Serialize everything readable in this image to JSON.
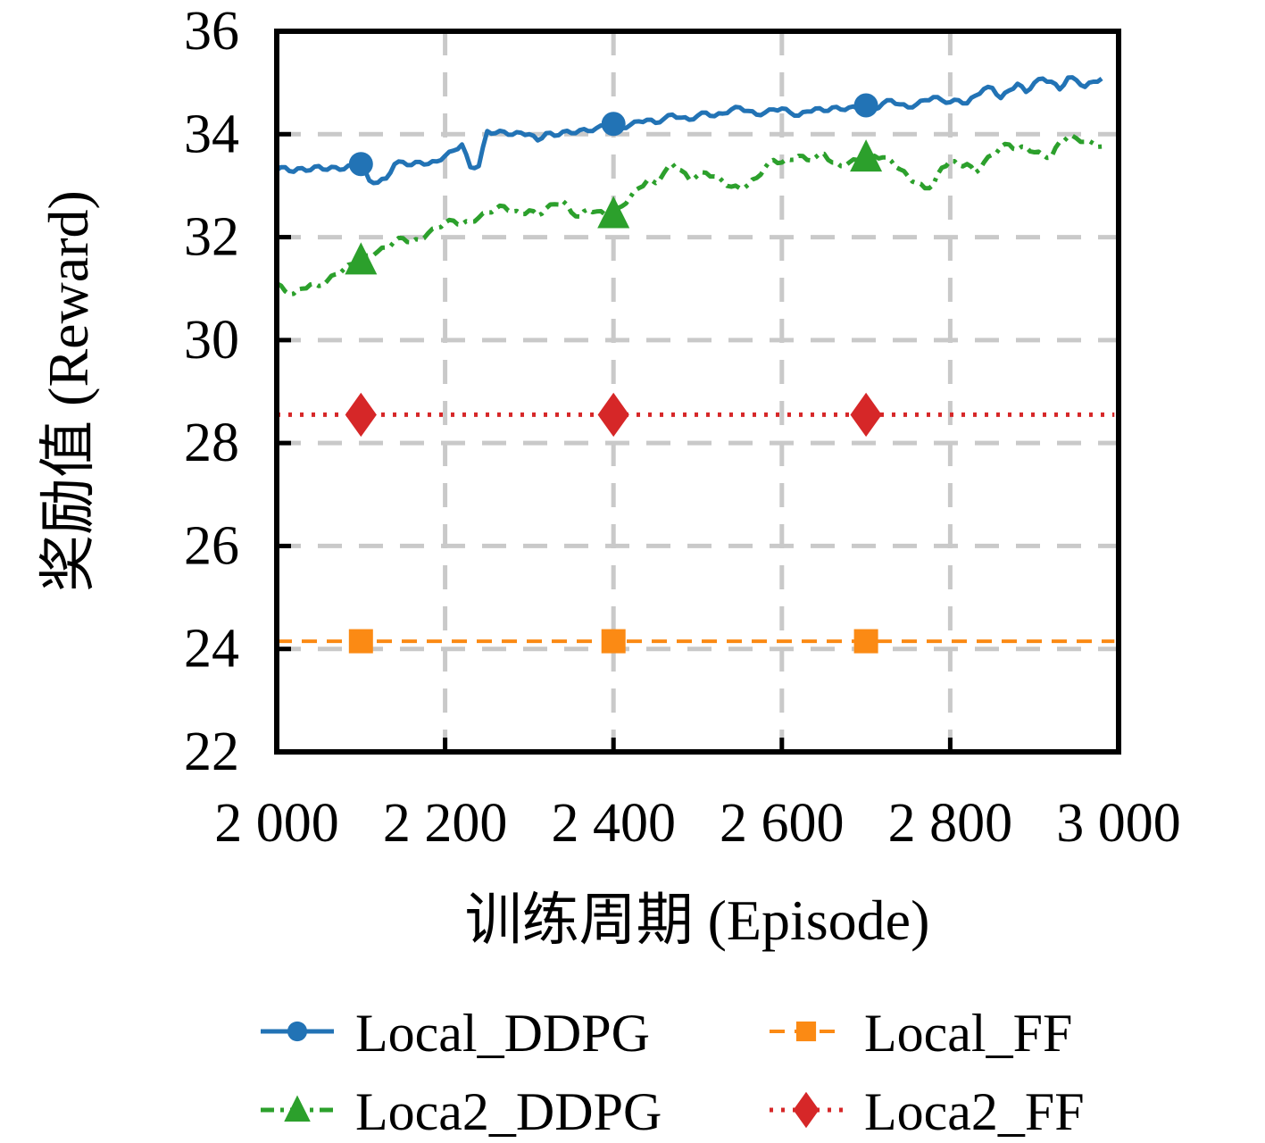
{
  "chart_data": {
    "type": "line",
    "title": "",
    "xlabel": "训练周期 (Episode)",
    "ylabel": "奖励值 (Reward)",
    "xlim": [
      2000,
      3000
    ],
    "ylim": [
      22,
      36
    ],
    "xticks": [
      2000,
      2200,
      2400,
      2600,
      2800,
      3000
    ],
    "xtick_labels": [
      "2 000",
      "2 200",
      "2 400",
      "2 600",
      "2 800",
      "3 000"
    ],
    "yticks": [
      22,
      24,
      26,
      28,
      30,
      32,
      34,
      36
    ],
    "ytick_labels": [
      "22",
      "24",
      "26",
      "28",
      "30",
      "32",
      "34",
      "36"
    ],
    "grid": true,
    "grid_color": "#c9c9c9",
    "axis_color": "#000000",
    "background": "#ffffff",
    "legend_position": "below-two-columns",
    "legend_order": [
      0,
      2,
      1,
      3
    ],
    "series": [
      {
        "name": "Local_DDPG",
        "color": "#2273b5",
        "line_style": "solid",
        "line_width": 5,
        "marker": "circle",
        "marker_size": 27,
        "jitter": 0.03,
        "marker_x": [
          2100,
          2400,
          2700
        ],
        "marker_y": [
          33.42,
          34.2,
          34.56
        ],
        "x_start": 2000,
        "x_step": 10,
        "y": [
          33.3,
          33.36,
          33.27,
          33.34,
          33.3,
          33.38,
          33.31,
          33.36,
          33.32,
          33.4,
          33.42,
          33.1,
          33.06,
          33.14,
          33.42,
          33.46,
          33.4,
          33.46,
          33.42,
          33.47,
          33.58,
          33.68,
          33.8,
          33.36,
          33.38,
          34.06,
          34.02,
          34.05,
          33.99,
          34.03,
          34.0,
          33.88,
          34.02,
          33.97,
          34.05,
          34.02,
          34.08,
          34.06,
          34.12,
          34.16,
          34.2,
          34.12,
          34.18,
          34.25,
          34.28,
          34.22,
          34.3,
          34.38,
          34.32,
          34.28,
          34.36,
          34.42,
          34.35,
          34.4,
          34.48,
          34.52,
          34.45,
          34.38,
          34.42,
          34.48,
          34.5,
          34.42,
          34.36,
          34.44,
          34.5,
          34.45,
          34.52,
          34.48,
          34.52,
          34.5,
          34.56,
          34.48,
          34.6,
          34.66,
          34.58,
          34.52,
          34.58,
          34.66,
          34.72,
          34.66,
          34.62,
          34.66,
          34.6,
          34.75,
          34.88,
          34.9,
          34.7,
          34.85,
          34.98,
          34.82,
          35.0,
          35.08,
          35.02,
          34.87,
          35.1,
          35.05,
          34.92,
          35.02,
          35.08
        ]
      },
      {
        "name": "Loca2_DDPG",
        "color": "#2ca02c",
        "line_style": "dashdot",
        "line_width": 5,
        "marker": "triangle",
        "marker_size": 36,
        "jitter": 0.035,
        "marker_x": [
          2100,
          2400,
          2700
        ],
        "marker_y": [
          31.55,
          32.45,
          33.55
        ],
        "x_start": 2000,
        "x_step": 10,
        "y": [
          31.1,
          30.95,
          30.9,
          31.0,
          31.08,
          31.05,
          31.15,
          31.28,
          31.38,
          31.48,
          31.55,
          31.65,
          31.72,
          31.8,
          31.92,
          31.98,
          31.9,
          31.95,
          32.08,
          32.18,
          32.28,
          32.32,
          32.25,
          32.3,
          32.38,
          32.48,
          32.55,
          32.6,
          32.5,
          32.45,
          32.52,
          32.42,
          32.56,
          32.64,
          32.7,
          32.48,
          32.4,
          32.54,
          32.5,
          32.44,
          32.45,
          32.6,
          32.78,
          32.95,
          33.1,
          33.05,
          33.25,
          33.42,
          33.3,
          33.12,
          33.2,
          33.25,
          33.18,
          33.08,
          32.98,
          32.95,
          33.02,
          33.15,
          33.35,
          33.5,
          33.45,
          33.5,
          33.58,
          33.5,
          33.55,
          33.62,
          33.45,
          33.38,
          33.45,
          33.5,
          33.55,
          33.58,
          33.55,
          33.48,
          33.32,
          33.18,
          33.05,
          32.95,
          33.02,
          33.35,
          33.48,
          33.4,
          33.42,
          33.25,
          33.45,
          33.6,
          33.75,
          33.8,
          33.7,
          33.75,
          33.65,
          33.6,
          33.55,
          33.85,
          33.95,
          33.92,
          33.85,
          33.82,
          33.76
        ]
      },
      {
        "name": "Local_FF",
        "color": "#fb8a14",
        "line_style": "dashed",
        "line_width": 4,
        "marker": "square",
        "marker_size": 27,
        "jitter": 0,
        "marker_x": [
          2100,
          2400,
          2700
        ],
        "marker_y": [
          24.15,
          24.15,
          24.15
        ],
        "x": [
          2000,
          2995
        ],
        "y": [
          24.15,
          24.15
        ]
      },
      {
        "name": "Loca2_FF",
        "color": "#d62728",
        "line_style": "dotted",
        "line_width": 5,
        "marker": "diamond",
        "marker_size": 44,
        "jitter": 0,
        "marker_x": [
          2100,
          2400,
          2700
        ],
        "marker_y": [
          28.55,
          28.55,
          28.55
        ],
        "x": [
          2000,
          2995
        ],
        "y": [
          28.55,
          28.55
        ]
      }
    ]
  }
}
